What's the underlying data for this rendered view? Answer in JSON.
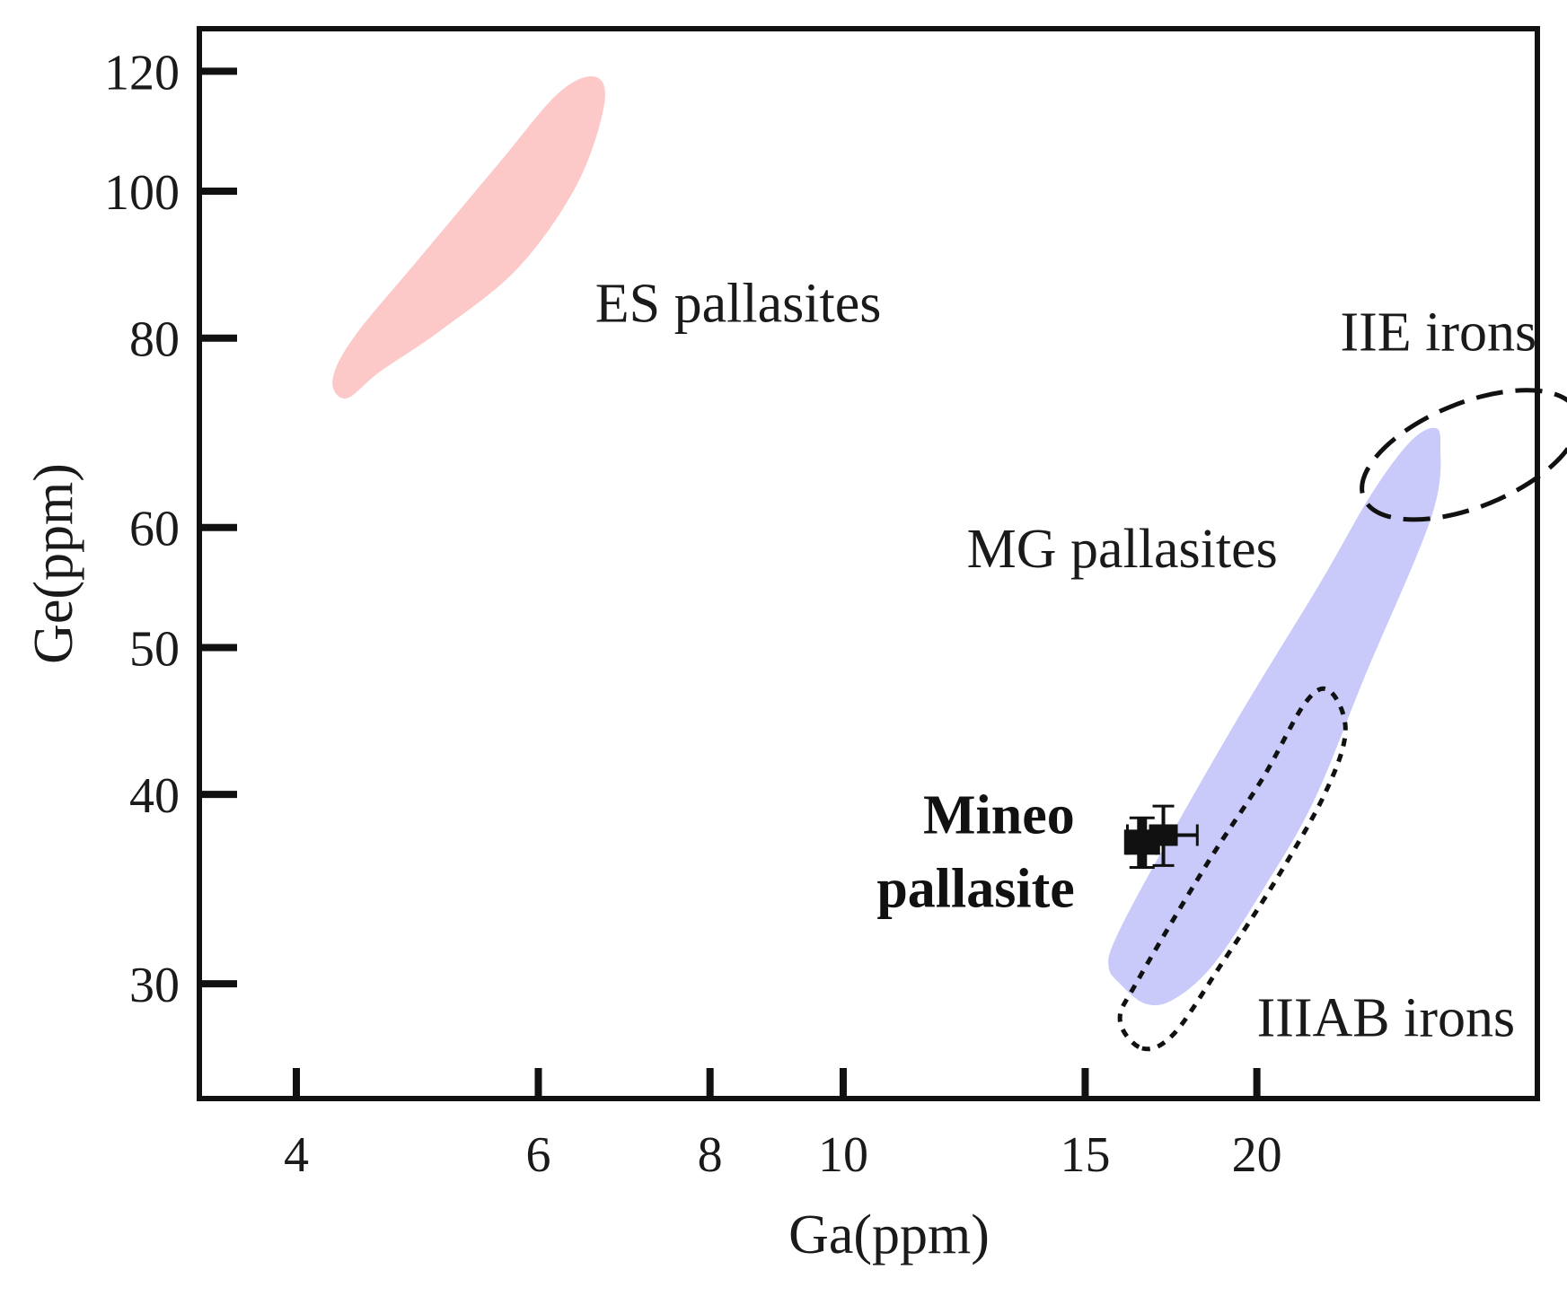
{
  "chart_data": {
    "type": "scatter",
    "xscale": "log",
    "yscale": "log",
    "xlabel": "Ga(ppm)",
    "ylabel": "Ge(ppm)",
    "xlim": [
      3.4,
      32
    ],
    "ylim": [
      25.2,
      128
    ],
    "xticks": [
      4,
      6,
      8,
      10,
      15,
      20
    ],
    "yticks": [
      30,
      40,
      50,
      60,
      80,
      100,
      120
    ],
    "colors": {
      "es_fill": "#fcc8c8",
      "mg_fill": "#c9c9fa",
      "axis": "#111111",
      "sample": "#111111"
    },
    "regions": [
      {
        "name": "ES pallasites",
        "label": "ES pallasites",
        "style": "filled",
        "color": "#fcc8c8",
        "outline": [
          [
            4.35,
            73
          ],
          [
            4.6,
            76
          ],
          [
            5.1,
            81
          ],
          [
            5.8,
            89
          ],
          [
            6.4,
            101
          ],
          [
            6.7,
            114
          ],
          [
            6.6,
            119
          ],
          [
            6.2,
            116
          ],
          [
            5.6,
            104
          ],
          [
            4.9,
            90
          ],
          [
            4.4,
            80
          ],
          [
            4.25,
            75
          ]
        ],
        "label_at": [
          6.6,
          82
        ]
      },
      {
        "name": "MG pallasites",
        "label": "MG pallasites",
        "style": "filled",
        "color": "#c9c9fa",
        "outline": [
          [
            15.6,
            30.8
          ],
          [
            15.9,
            30.0
          ],
          [
            16.6,
            29.1
          ],
          [
            17.4,
            29.3
          ],
          [
            18.6,
            30.9
          ],
          [
            20.2,
            34.6
          ],
          [
            22.0,
            39.6
          ],
          [
            24.0,
            48.0
          ],
          [
            26.8,
            61.0
          ],
          [
            27.2,
            68.0
          ],
          [
            26.9,
            69.8
          ],
          [
            25.8,
            68.2
          ],
          [
            24.2,
            63.0
          ],
          [
            22.2,
            55.0
          ],
          [
            19.4,
            45.0
          ],
          [
            17.0,
            36.5
          ],
          [
            15.8,
            32.2
          ]
        ],
        "label_at": [
          12.3,
          56.5
        ]
      },
      {
        "name": "IIE irons",
        "label": "IIE irons",
        "style": "dashed",
        "color": "#111111",
        "center": [
          28.6,
          67.0
        ],
        "label_at": [
          23.0,
          78.5
        ]
      },
      {
        "name": "IIIAB irons",
        "label": "IIIAB irons",
        "style": "dotted",
        "color": "#111111",
        "outline": [
          [
            16.5,
            27.2
          ],
          [
            17.4,
            27.8
          ],
          [
            18.8,
            30.8
          ],
          [
            20.6,
            35.0
          ],
          [
            22.4,
            40.0
          ],
          [
            23.2,
            44.0
          ],
          [
            22.6,
            46.8
          ],
          [
            21.7,
            46.0
          ],
          [
            20.2,
            41.0
          ],
          [
            18.4,
            36.0
          ],
          [
            16.4,
            30.2
          ],
          [
            15.9,
            28.4
          ]
        ],
        "label_at": [
          20.0,
          27.7
        ]
      }
    ],
    "points": [
      {
        "name": "Mineo pallasite",
        "label_lines": [
          "Mineo",
          "pallasite"
        ],
        "x": 16.5,
        "y": 37.2,
        "xerr": 0.4,
        "yerr": 1.4,
        "x2": 17.1,
        "y2": 37.6,
        "xerr2": 1.0,
        "yerr2": 1.7
      }
    ]
  }
}
